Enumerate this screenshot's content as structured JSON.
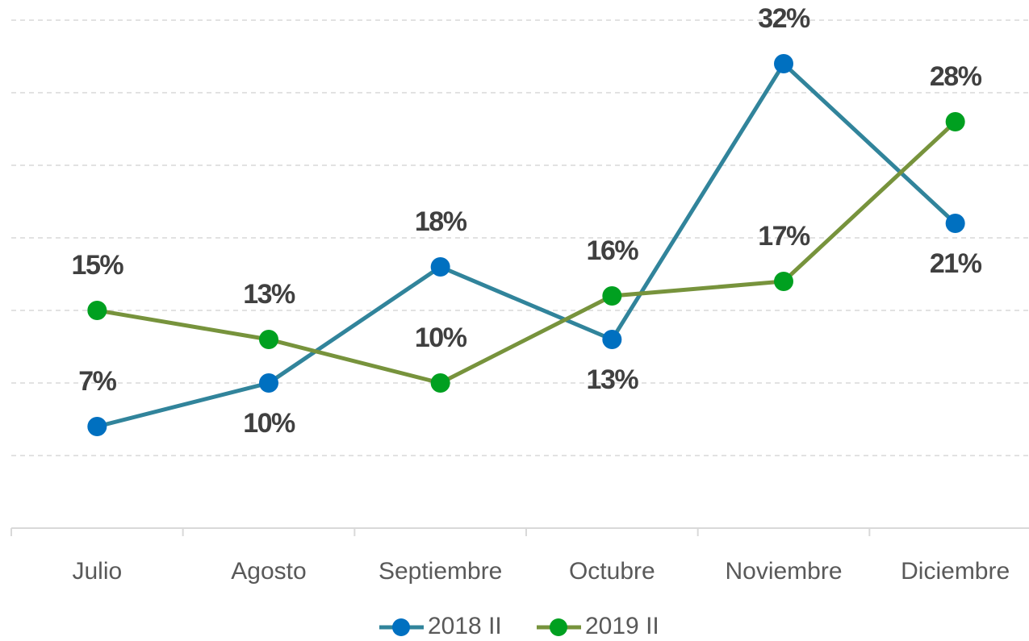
{
  "chart_data": {
    "type": "line",
    "categories": [
      "Julio",
      "Agosto",
      "Septiembre",
      "Octubre",
      "Noviembre",
      "Diciembre"
    ],
    "series": [
      {
        "name": "2018 II",
        "color": "#31849b",
        "marker_color": "#0070c0",
        "values": [
          7,
          10,
          18,
          13,
          32,
          21
        ],
        "value_labels": [
          "7%",
          "10%",
          "18%",
          "13%",
          "32%",
          "21%"
        ]
      },
      {
        "name": "2019 II",
        "color": "#77933c",
        "marker_color": "#00a020",
        "values": [
          15,
          13,
          10,
          16,
          17,
          28
        ],
        "value_labels": [
          "15%",
          "13%",
          "10%",
          "16%",
          "17%",
          "28%"
        ]
      }
    ],
    "ylim": [
      0,
      35
    ],
    "yticks": [
      0,
      5,
      10,
      15,
      20,
      25,
      30,
      35
    ],
    "grid": true,
    "legend": "bottom"
  }
}
